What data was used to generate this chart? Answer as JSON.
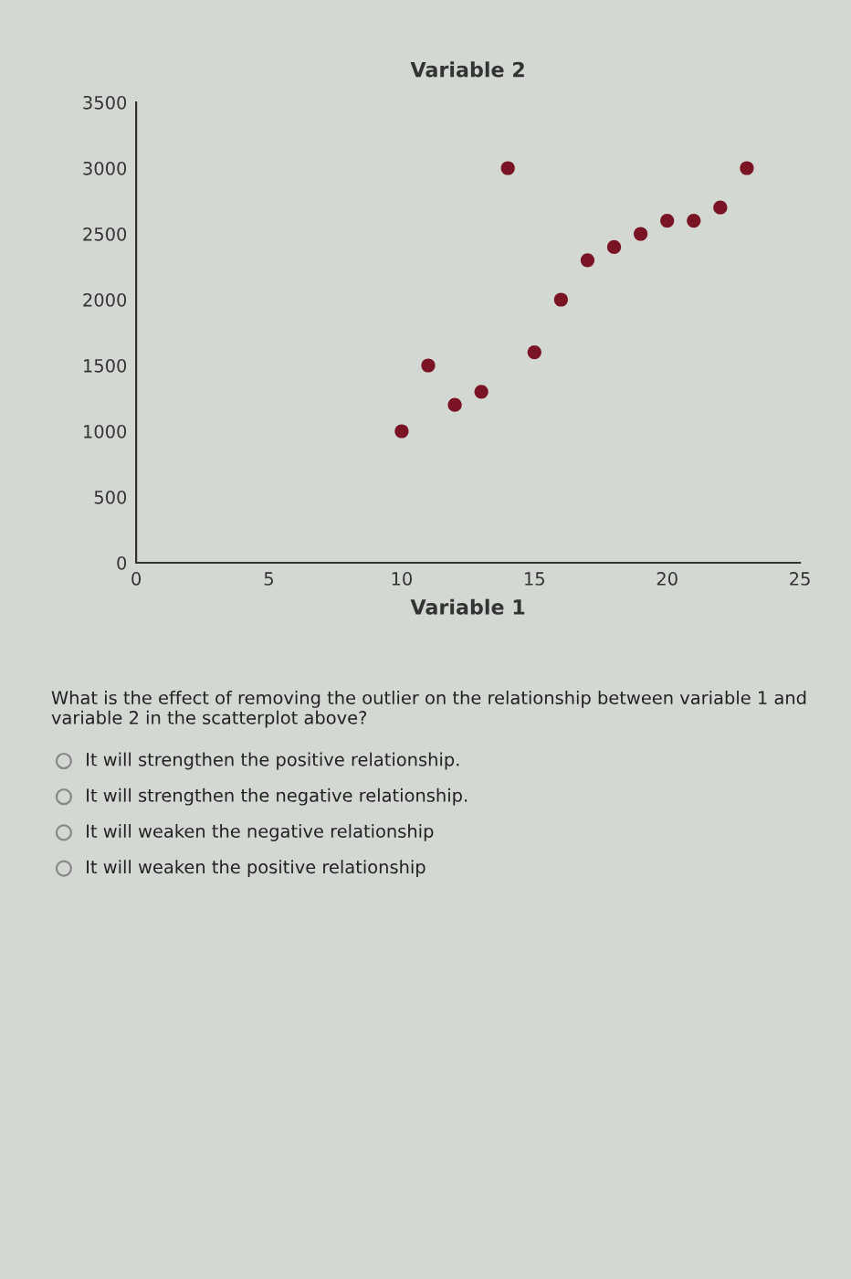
{
  "chart_data": {
    "type": "scatter",
    "xlabel": "Variable 1",
    "ylabel": "Variable 2",
    "x": [
      10,
      11,
      12,
      13,
      14,
      15,
      16,
      17,
      18,
      19,
      20,
      21,
      22,
      23
    ],
    "series": [
      {
        "color": "#7a1424",
        "values": [
          1000,
          1500,
          1200,
          1300,
          3000,
          1600,
          2000,
          2300,
          2400,
          2500,
          2600,
          2600,
          2700,
          3000
        ]
      }
    ],
    "xlim": [
      0,
      25
    ],
    "xticks": [
      0,
      5,
      10,
      15,
      20,
      25
    ],
    "ylim": [
      0,
      3500
    ],
    "yticks": [
      0,
      500,
      1000,
      1500,
      2000,
      2500,
      3000,
      3500
    ],
    "marker": "circle",
    "grid": false,
    "legend": false,
    "annotations": [
      "What is the effect of removing the outlier on the relationship between variable 1 and variable 2 in the scatterplot above?",
      "It will strengthen the positive relationship.",
      "It will strengthen the negative relationship.",
      "It will weaken the negative relationship",
      "It will weaken the positive relationship"
    ]
  }
}
